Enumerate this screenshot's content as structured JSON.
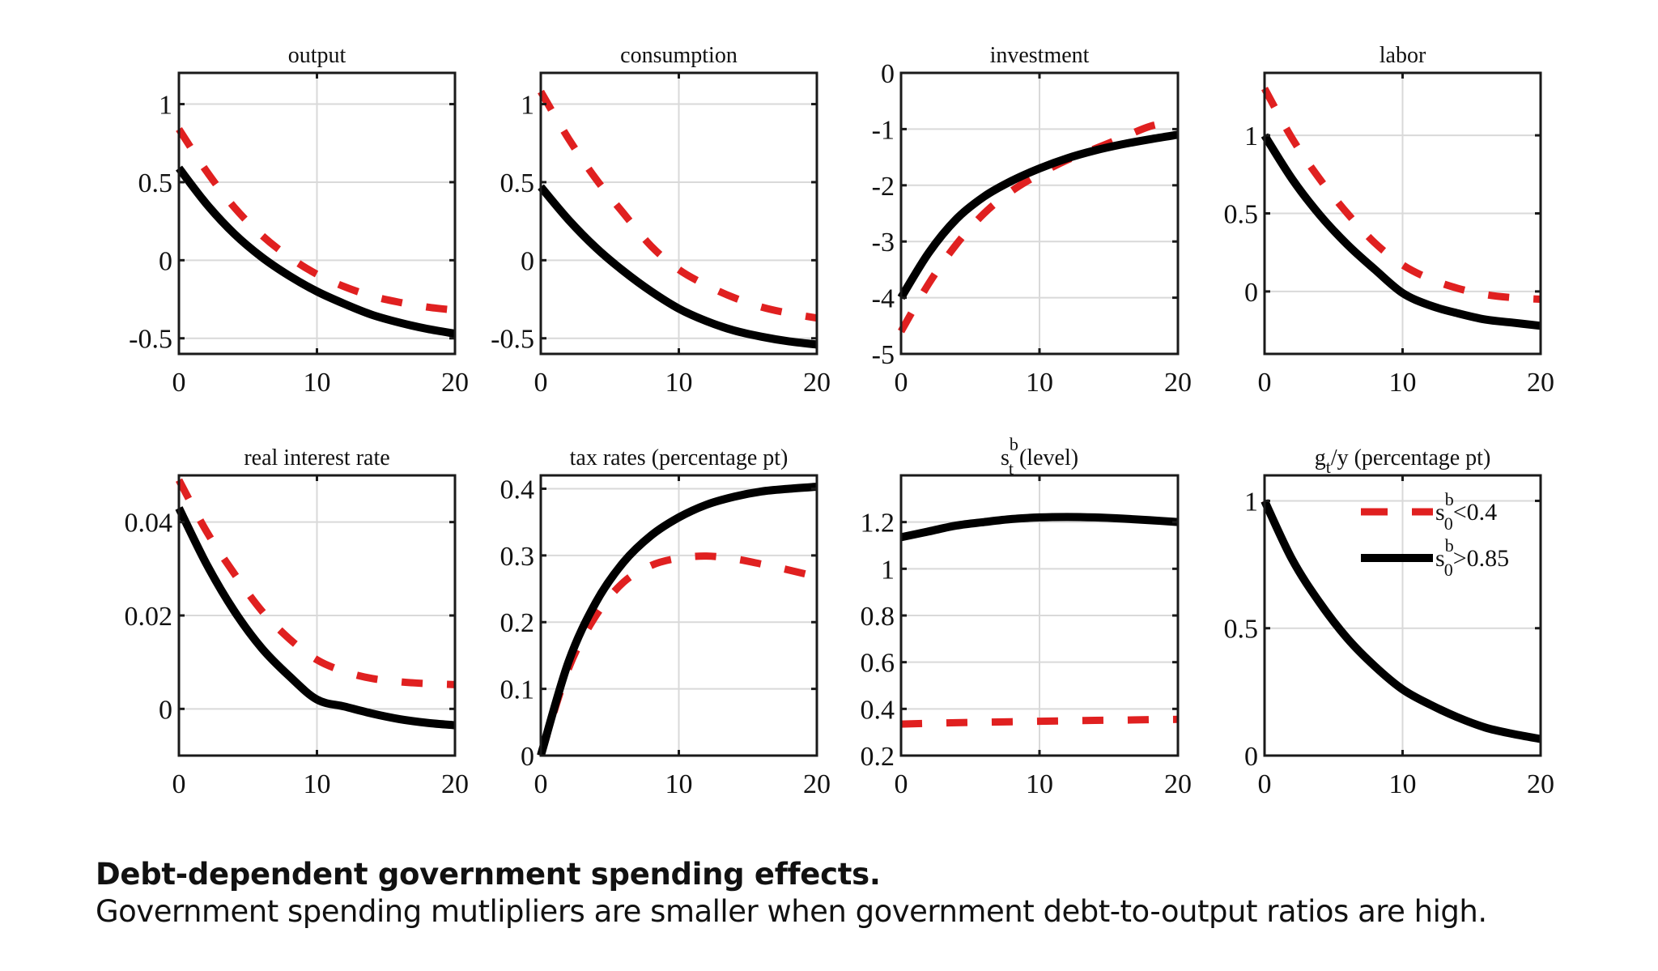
{
  "caption": {
    "title": "Debt-dependent government spending effects.",
    "body": "Government spending mutlipliers are smaller when government debt-to-output ratios are high."
  },
  "colors": {
    "low_debt": "#e02020",
    "high_debt": "#000000",
    "grid": "#d9d9d9"
  },
  "legend": {
    "placement": "top-right of last panel",
    "entries": [
      {
        "series": "low_debt",
        "base": "s",
        "sup": "b",
        "sub": "0",
        "rest": "<0.4",
        "style": "dashed"
      },
      {
        "series": "high_debt",
        "base": "s",
        "sup": "b",
        "sub": "0",
        "rest": ">0.85",
        "style": "solid"
      }
    ]
  },
  "chart_data": [
    {
      "type": "line",
      "title": "output",
      "xlabel": "",
      "ylabel": "",
      "xlim": [
        0,
        20
      ],
      "ylim": [
        -0.6,
        1.2
      ],
      "grid": true,
      "xticks": [
        0,
        10,
        20
      ],
      "xtick_labels": [
        "0",
        "10",
        "20"
      ],
      "yticks": [
        -0.5,
        0,
        0.5,
        1
      ],
      "ytick_labels": [
        "-0.5",
        "0",
        "0.5",
        "1"
      ],
      "x": [
        0,
        2,
        4,
        6,
        8,
        10,
        12,
        14,
        16,
        18,
        20
      ],
      "series": [
        {
          "name": "s_0^b<0.4",
          "key": "low_debt",
          "values": [
            0.84,
            0.57,
            0.34,
            0.16,
            0.02,
            -0.09,
            -0.17,
            -0.23,
            -0.27,
            -0.3,
            -0.32
          ]
        },
        {
          "name": "s_0^b>0.85",
          "key": "high_debt",
          "values": [
            0.59,
            0.36,
            0.17,
            0.02,
            -0.1,
            -0.2,
            -0.28,
            -0.35,
            -0.4,
            -0.44,
            -0.47
          ]
        }
      ]
    },
    {
      "type": "line",
      "title": "consumption",
      "xlabel": "",
      "ylabel": "",
      "xlim": [
        0,
        20
      ],
      "ylim": [
        -0.6,
        1.2
      ],
      "grid": true,
      "xticks": [
        0,
        10,
        20
      ],
      "xtick_labels": [
        "0",
        "10",
        "20"
      ],
      "yticks": [
        -0.5,
        0,
        0.5,
        1
      ],
      "ytick_labels": [
        "-0.5",
        "0",
        "0.5",
        "1"
      ],
      "x": [
        0,
        2,
        4,
        6,
        8,
        10,
        12,
        14,
        16,
        18,
        20
      ],
      "series": [
        {
          "name": "s_0^b<0.4",
          "key": "low_debt",
          "values": [
            1.08,
            0.78,
            0.52,
            0.3,
            0.09,
            -0.06,
            -0.16,
            -0.24,
            -0.3,
            -0.34,
            -0.37
          ]
        },
        {
          "name": "s_0^b>0.85",
          "key": "high_debt",
          "values": [
            0.47,
            0.26,
            0.08,
            -0.07,
            -0.2,
            -0.31,
            -0.39,
            -0.45,
            -0.49,
            -0.52,
            -0.54
          ]
        }
      ]
    },
    {
      "type": "line",
      "title": "investment",
      "xlabel": "",
      "ylabel": "",
      "xlim": [
        0,
        20
      ],
      "ylim": [
        -5,
        0
      ],
      "grid": true,
      "xticks": [
        0,
        10,
        20
      ],
      "xtick_labels": [
        "0",
        "10",
        "20"
      ],
      "yticks": [
        -5,
        -4,
        -3,
        -2,
        -1,
        0
      ],
      "ytick_labels": [
        "-5",
        "-4",
        "-3",
        "-2",
        "-1",
        "0"
      ],
      "x": [
        0,
        2,
        4,
        6,
        8,
        10,
        12,
        14,
        16,
        18,
        20
      ],
      "series": [
        {
          "name": "s_0^b<0.4",
          "key": "low_debt",
          "values": [
            -4.6,
            -3.75,
            -3.05,
            -2.5,
            -2.1,
            -1.8,
            -1.55,
            -1.35,
            -1.15,
            -0.95,
            -0.85
          ]
        },
        {
          "name": "s_0^b>0.85",
          "key": "high_debt",
          "values": [
            -4.0,
            -3.2,
            -2.6,
            -2.2,
            -1.92,
            -1.7,
            -1.52,
            -1.38,
            -1.27,
            -1.18,
            -1.1
          ]
        }
      ]
    },
    {
      "type": "line",
      "title": "labor",
      "xlabel": "",
      "ylabel": "",
      "xlim": [
        0,
        20
      ],
      "ylim": [
        -0.4,
        1.4
      ],
      "grid": true,
      "xticks": [
        0,
        10,
        20
      ],
      "xtick_labels": [
        "0",
        "10",
        "20"
      ],
      "yticks": [
        0,
        0.5,
        1
      ],
      "ytick_labels": [
        "0",
        "0.5",
        "1"
      ],
      "x": [
        0,
        2,
        4,
        6,
        8,
        10,
        12,
        14,
        16,
        18,
        20
      ],
      "series": [
        {
          "name": "s_0^b<0.4",
          "key": "low_debt",
          "values": [
            1.3,
            0.98,
            0.72,
            0.5,
            0.31,
            0.17,
            0.08,
            0.02,
            -0.02,
            -0.04,
            -0.05
          ]
        },
        {
          "name": "s_0^b>0.85",
          "key": "high_debt",
          "values": [
            1.0,
            0.72,
            0.49,
            0.3,
            0.14,
            -0.01,
            -0.09,
            -0.14,
            -0.18,
            -0.2,
            -0.22
          ]
        }
      ]
    },
    {
      "type": "line",
      "title": "real interest rate",
      "xlabel": "",
      "ylabel": "",
      "xlim": [
        0,
        20
      ],
      "ylim": [
        -0.01,
        0.05
      ],
      "grid": true,
      "xticks": [
        0,
        10,
        20
      ],
      "xtick_labels": [
        "0",
        "10",
        "20"
      ],
      "yticks": [
        0,
        0.02,
        0.04
      ],
      "ytick_labels": [
        "0",
        "0.02",
        "0.04"
      ],
      "x": [
        0,
        2,
        4,
        6,
        8,
        10,
        12,
        14,
        16,
        18,
        20
      ],
      "series": [
        {
          "name": "s_0^b<0.4",
          "key": "low_debt",
          "values": [
            0.049,
            0.038,
            0.029,
            0.021,
            0.015,
            0.0105,
            0.008,
            0.0065,
            0.0058,
            0.0054,
            0.0052
          ]
        },
        {
          "name": "s_0^b>0.85",
          "key": "high_debt",
          "values": [
            0.043,
            0.031,
            0.021,
            0.013,
            0.007,
            0.002,
            0.0005,
            -0.001,
            -0.0022,
            -0.003,
            -0.0035
          ]
        }
      ]
    },
    {
      "type": "line",
      "title": "tax rates (percentage pt)",
      "xlabel": "",
      "ylabel": "",
      "xlim": [
        0,
        20
      ],
      "ylim": [
        0,
        0.42
      ],
      "grid": true,
      "xticks": [
        0,
        10,
        20
      ],
      "xtick_labels": [
        "0",
        "10",
        "20"
      ],
      "yticks": [
        0,
        0.1,
        0.2,
        0.3,
        0.4
      ],
      "ytick_labels": [
        "0",
        "0.1",
        "0.2",
        "0.3",
        "0.4"
      ],
      "x": [
        0,
        2,
        4,
        6,
        8,
        10,
        12,
        14,
        16,
        18,
        20
      ],
      "series": [
        {
          "name": "s_0^b<0.4",
          "key": "low_debt",
          "values": [
            0.0,
            0.13,
            0.21,
            0.26,
            0.285,
            0.296,
            0.299,
            0.295,
            0.287,
            0.278,
            0.268
          ]
        },
        {
          "name": "s_0^b>0.85",
          "key": "high_debt",
          "values": [
            0.0,
            0.14,
            0.23,
            0.29,
            0.33,
            0.357,
            0.376,
            0.388,
            0.396,
            0.4,
            0.403
          ]
        }
      ]
    },
    {
      "type": "line",
      "title": "s_t^b (level)",
      "title_parts": {
        "base": "s",
        "sup": "b",
        "sub": "t",
        "rest": " (level)"
      },
      "xlabel": "",
      "ylabel": "",
      "xlim": [
        0,
        20
      ],
      "ylim": [
        0.2,
        1.4
      ],
      "grid": true,
      "xticks": [
        0,
        10,
        20
      ],
      "xtick_labels": [
        "0",
        "10",
        "20"
      ],
      "yticks": [
        0.2,
        0.4,
        0.6,
        0.8,
        1,
        1.2
      ],
      "ytick_labels": [
        "0.2",
        "0.4",
        "0.6",
        "0.8",
        "1",
        "1.2"
      ],
      "x": [
        0,
        2,
        4,
        6,
        8,
        10,
        12,
        14,
        16,
        18,
        20
      ],
      "series": [
        {
          "name": "s_0^b<0.4",
          "key": "low_debt",
          "values": [
            0.335,
            0.338,
            0.341,
            0.343,
            0.345,
            0.347,
            0.349,
            0.351,
            0.352,
            0.354,
            0.355
          ]
        },
        {
          "name": "s_0^b>0.85",
          "key": "high_debt",
          "values": [
            1.135,
            1.16,
            1.185,
            1.2,
            1.213,
            1.22,
            1.222,
            1.22,
            1.215,
            1.208,
            1.2
          ]
        }
      ]
    },
    {
      "type": "line",
      "title": "g_t/y (percentage pt)",
      "title_parts": {
        "base": "g",
        "sup": "",
        "sub": "t",
        "rest": "/y (percentage pt)"
      },
      "xlabel": "",
      "ylabel": "",
      "xlim": [
        0,
        20
      ],
      "ylim": [
        0,
        1.1
      ],
      "grid": true,
      "xticks": [
        0,
        10,
        20
      ],
      "xtick_labels": [
        "0",
        "10",
        "20"
      ],
      "yticks": [
        0,
        0.5,
        1
      ],
      "ytick_labels": [
        "0",
        "0.5",
        "1"
      ],
      "x": [
        0,
        2,
        4,
        6,
        8,
        10,
        12,
        14,
        16,
        18,
        20
      ],
      "legend": "top-right",
      "series": [
        {
          "name": "s_0^b<0.4",
          "key": "low_debt",
          "values": [
            1.0,
            0.77,
            0.6,
            0.46,
            0.35,
            0.26,
            0.2,
            0.15,
            0.11,
            0.085,
            0.065
          ]
        },
        {
          "name": "s_0^b>0.85",
          "key": "high_debt",
          "values": [
            1.0,
            0.77,
            0.6,
            0.46,
            0.35,
            0.26,
            0.2,
            0.15,
            0.11,
            0.085,
            0.065
          ]
        }
      ]
    }
  ]
}
